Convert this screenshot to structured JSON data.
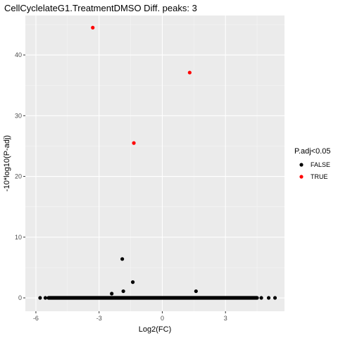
{
  "chart_data": {
    "type": "scatter",
    "title": "CellCyclelateG1.TreatmentDMSO Diff. peaks: 3",
    "xlabel": "Log2(FC)",
    "ylabel": "-10*log10(P-adj)",
    "xlim": [
      -6.5,
      5.8
    ],
    "ylim": [
      -2.2,
      46.5
    ],
    "x_ticks": [
      -6,
      -3,
      0,
      3
    ],
    "x_tick_labels": [
      "-6",
      "-3",
      "0",
      "3"
    ],
    "y_ticks": [
      0,
      10,
      20,
      30,
      40
    ],
    "y_tick_labels": [
      "0",
      "10",
      "20",
      "30",
      "40"
    ],
    "grid": true,
    "legend": {
      "title": "P.adj<0.05",
      "position": "right",
      "entries": [
        {
          "label": "FALSE",
          "color": "#000000"
        },
        {
          "label": "TRUE",
          "color": "#ff0000"
        }
      ]
    },
    "series": [
      {
        "name": "FALSE",
        "color": "#000000",
        "points": [
          {
            "x": -5.8,
            "y": 0
          },
          {
            "x": -5.55,
            "y": 0
          },
          {
            "x": -1.9,
            "y": 6.4
          },
          {
            "x": -1.4,
            "y": 2.6
          },
          {
            "x": -1.85,
            "y": 1.1
          },
          {
            "x": -2.4,
            "y": 0.7
          },
          {
            "x": 1.6,
            "y": 1.1
          },
          {
            "x": 4.7,
            "y": 0
          },
          {
            "x": 5.05,
            "y": 0
          },
          {
            "x": 5.35,
            "y": 0
          }
        ],
        "dense_band": {
          "x_start": -5.4,
          "x_end": 4.5,
          "y": 0
        }
      },
      {
        "name": "TRUE",
        "color": "#ff0000",
        "points": [
          {
            "x": -3.3,
            "y": 44.5
          },
          {
            "x": 1.3,
            "y": 37.1
          },
          {
            "x": -1.35,
            "y": 25.5
          }
        ]
      }
    ]
  }
}
